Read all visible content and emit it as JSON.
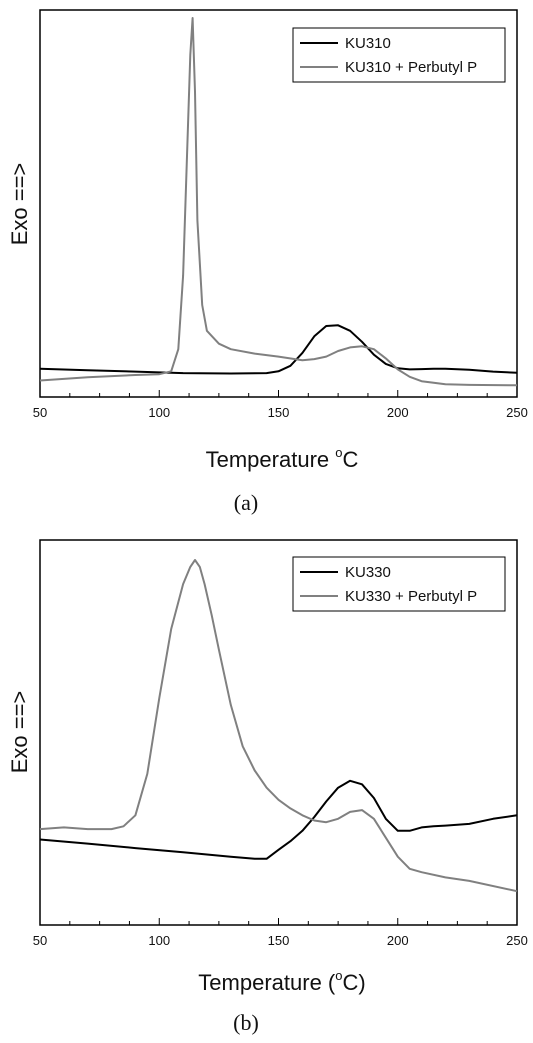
{
  "chart_data": [
    {
      "type": "line",
      "caption": "(a)",
      "xlabel_prefix": "Temperature ",
      "xlabel_degree": "o",
      "xlabel_suffix": "C",
      "ylabel": "Exo ==>",
      "xlim": [
        50,
        250
      ],
      "xticks": [
        50,
        100,
        150,
        200,
        250
      ],
      "yticks_shown": false,
      "ylim": [
        0,
        100
      ],
      "legend_position": "top-right",
      "series": [
        {
          "name": "KU310",
          "color": "#000000",
          "x": [
            50,
            70,
            90,
            110,
            130,
            145,
            150,
            155,
            160,
            165,
            170,
            175,
            180,
            185,
            190,
            195,
            200,
            205,
            210,
            215,
            220,
            230,
            240,
            250
          ],
          "y": [
            4.7,
            4.3,
            3.9,
            3.5,
            3.4,
            3.5,
            4.0,
            5.5,
            9,
            13.5,
            16.3,
            16.5,
            15.0,
            12.0,
            8.5,
            6.0,
            4.8,
            4.5,
            4.6,
            4.7,
            4.7,
            4.4,
            3.9,
            3.6
          ]
        },
        {
          "name": "KU310 + Perbutyl P",
          "color": "#808080",
          "x": [
            50,
            70,
            90,
            100,
            105,
            108,
            110,
            112,
            113,
            114,
            115,
            116,
            118,
            120,
            125,
            130,
            140,
            150,
            160,
            165,
            170,
            175,
            180,
            185,
            190,
            195,
            200,
            205,
            210,
            220,
            230,
            250
          ],
          "y": [
            1.5,
            2.4,
            3.0,
            3.2,
            4.0,
            10,
            30,
            70,
            90,
            100,
            80,
            45,
            22,
            15,
            11.5,
            10,
            8.8,
            8.0,
            7.0,
            7.3,
            8.0,
            9.5,
            10.5,
            10.8,
            10.0,
            7.5,
            4.5,
            2.5,
            1.3,
            0.5,
            0.3,
            0.2
          ]
        }
      ]
    },
    {
      "type": "line",
      "caption": "(b)",
      "xlabel_prefix": "Temperature (",
      "xlabel_degree": "o",
      "xlabel_suffix": "C)",
      "ylabel": "Exo ==>",
      "xlim": [
        50,
        250
      ],
      "xticks": [
        50,
        100,
        150,
        200,
        250
      ],
      "yticks_shown": false,
      "ylim": [
        0,
        100
      ],
      "legend_position": "top-right",
      "series": [
        {
          "name": "KU330",
          "color": "#000000",
          "x": [
            50,
            70,
            90,
            110,
            130,
            140,
            145,
            150,
            155,
            160,
            165,
            170,
            175,
            180,
            185,
            190,
            195,
            200,
            205,
            210,
            215,
            220,
            230,
            240,
            250
          ],
          "y": [
            19.0,
            17.8,
            16.5,
            15.3,
            14.0,
            13.4,
            13.4,
            16.0,
            18.5,
            21.5,
            25.5,
            30.0,
            34.0,
            36.0,
            35.0,
            31.0,
            25.0,
            21.5,
            21.5,
            22.5,
            22.8,
            23.0,
            23.5,
            25.0,
            26.0
          ]
        },
        {
          "name": "KU330 + Perbutyl P",
          "color": "#808080",
          "x": [
            50,
            60,
            70,
            80,
            85,
            90,
            95,
            100,
            105,
            110,
            113,
            115,
            117,
            119,
            122,
            125,
            130,
            135,
            140,
            145,
            150,
            155,
            160,
            165,
            170,
            175,
            180,
            185,
            190,
            195,
            200,
            205,
            210,
            220,
            230,
            250
          ],
          "y": [
            22.0,
            22.5,
            22.0,
            22.0,
            22.8,
            26.0,
            38.0,
            60.0,
            80.0,
            93.0,
            98.0,
            100.0,
            98.0,
            93.0,
            84.0,
            74.0,
            58.0,
            46.0,
            39.0,
            34.0,
            30.5,
            28.0,
            26.0,
            24.5,
            24.0,
            25.0,
            27.0,
            27.5,
            25.0,
            19.5,
            14.0,
            10.5,
            9.5,
            8.0,
            7.0,
            4.0
          ]
        }
      ]
    }
  ]
}
